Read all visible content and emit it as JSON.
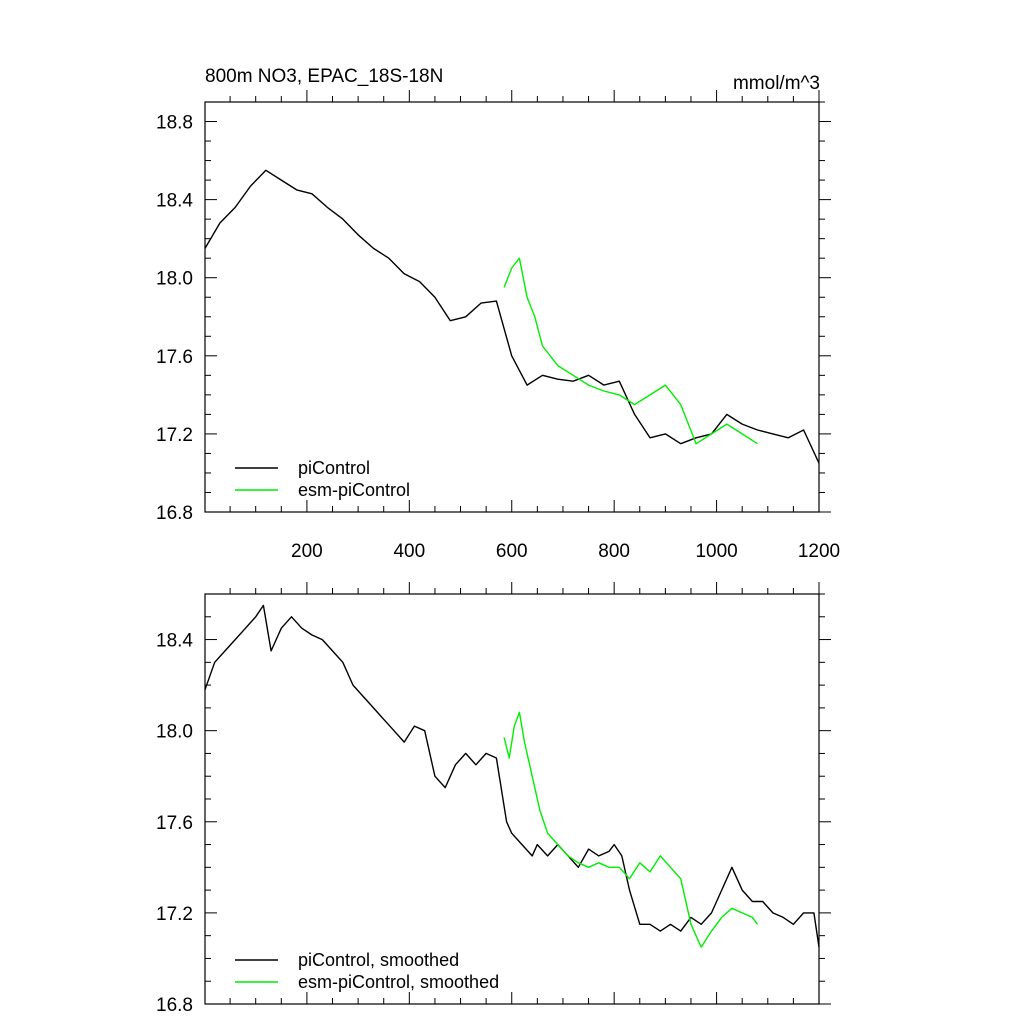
{
  "figure": {
    "title_left": "800m NO3, EPAC_18S-18N",
    "title_right": "mmol/m^3"
  },
  "colors": {
    "picontrol": "#000000",
    "esm_picontrol": "#00ee00"
  },
  "chart_data": [
    {
      "type": "line",
      "title": "800m NO3, EPAC_18S-18N",
      "units": "mmol/m^3",
      "xlim": [
        1,
        1200
      ],
      "ylim": [
        16.8,
        18.9
      ],
      "x_ticks": [
        200,
        400,
        600,
        800,
        1000,
        1200
      ],
      "x_tick_labels": [
        "200",
        "400",
        "600",
        "800",
        "1000",
        "1200"
      ],
      "y_ticks": [
        16.8,
        17.2,
        17.6,
        18.0,
        18.4,
        18.8
      ],
      "y_tick_labels": [
        "16.8",
        "17.2",
        "17.6",
        "18.0",
        "18.4",
        "18.8"
      ],
      "grid": false,
      "legend_position": "bottom-left",
      "series": [
        {
          "name": "piControl",
          "color": "#000000",
          "x": [
            1,
            30,
            60,
            90,
            120,
            150,
            180,
            210,
            240,
            270,
            300,
            330,
            360,
            390,
            420,
            450,
            480,
            510,
            540,
            570,
            600,
            630,
            660,
            690,
            720,
            750,
            780,
            810,
            840,
            870,
            900,
            930,
            960,
            990,
            1020,
            1050,
            1080,
            1110,
            1140,
            1170,
            1200
          ],
          "values": [
            18.15,
            18.28,
            18.36,
            18.47,
            18.55,
            18.5,
            18.45,
            18.43,
            18.36,
            18.3,
            18.22,
            18.15,
            18.1,
            18.02,
            17.98,
            17.9,
            17.78,
            17.8,
            17.87,
            17.88,
            17.6,
            17.45,
            17.5,
            17.48,
            17.47,
            17.5,
            17.45,
            17.47,
            17.3,
            17.18,
            17.2,
            17.15,
            17.18,
            17.2,
            17.3,
            17.25,
            17.22,
            17.2,
            17.18,
            17.22,
            17.05
          ]
        },
        {
          "name": "esm-piControl",
          "color": "#00ee00",
          "x": [
            585,
            600,
            615,
            630,
            645,
            660,
            690,
            720,
            750,
            780,
            810,
            840,
            870,
            900,
            930,
            960,
            990,
            1020,
            1050,
            1080
          ],
          "values": [
            17.95,
            18.05,
            18.1,
            17.9,
            17.8,
            17.65,
            17.55,
            17.5,
            17.45,
            17.42,
            17.4,
            17.35,
            17.4,
            17.45,
            17.35,
            17.15,
            17.2,
            17.25,
            17.2,
            17.15
          ]
        }
      ]
    },
    {
      "type": "line",
      "xlim": [
        1,
        1200
      ],
      "ylim": [
        16.8,
        18.6
      ],
      "x_ticks": [
        200,
        400,
        600,
        800,
        1000,
        1200
      ],
      "y_ticks": [
        16.8,
        17.2,
        17.6,
        18.0,
        18.4
      ],
      "y_tick_labels": [
        "16.8",
        "17.2",
        "17.6",
        "18.0",
        "18.4"
      ],
      "grid": false,
      "legend_position": "bottom-left",
      "series": [
        {
          "name": "piControl, smoothed",
          "color": "#000000",
          "x": [
            1,
            20,
            40,
            60,
            80,
            100,
            115,
            130,
            150,
            170,
            190,
            210,
            230,
            250,
            270,
            290,
            310,
            330,
            350,
            370,
            390,
            410,
            430,
            450,
            470,
            490,
            510,
            530,
            550,
            570,
            590,
            600,
            620,
            640,
            650,
            670,
            690,
            710,
            730,
            750,
            770,
            790,
            800,
            815,
            830,
            850,
            870,
            890,
            910,
            930,
            950,
            970,
            990,
            1010,
            1030,
            1050,
            1070,
            1090,
            1110,
            1130,
            1150,
            1170,
            1190,
            1200
          ],
          "values": [
            18.18,
            18.3,
            18.35,
            18.4,
            18.45,
            18.5,
            18.55,
            18.35,
            18.45,
            18.5,
            18.45,
            18.42,
            18.4,
            18.35,
            18.3,
            18.2,
            18.15,
            18.1,
            18.05,
            18.0,
            17.95,
            18.02,
            18.0,
            17.8,
            17.75,
            17.85,
            17.9,
            17.85,
            17.9,
            17.88,
            17.6,
            17.55,
            17.5,
            17.45,
            17.5,
            17.45,
            17.5,
            17.45,
            17.4,
            17.48,
            17.45,
            17.47,
            17.5,
            17.45,
            17.3,
            17.15,
            17.15,
            17.12,
            17.15,
            17.12,
            17.18,
            17.15,
            17.2,
            17.3,
            17.4,
            17.3,
            17.25,
            17.25,
            17.2,
            17.18,
            17.15,
            17.2,
            17.2,
            17.05
          ]
        },
        {
          "name": "esm-piControl, smoothed",
          "color": "#00ee00",
          "x": [
            585,
            595,
            605,
            615,
            625,
            640,
            655,
            670,
            690,
            710,
            730,
            750,
            770,
            790,
            810,
            830,
            850,
            870,
            890,
            910,
            930,
            950,
            970,
            990,
            1010,
            1030,
            1050,
            1070,
            1080
          ],
          "values": [
            17.97,
            17.88,
            18.02,
            18.08,
            17.95,
            17.8,
            17.65,
            17.55,
            17.5,
            17.45,
            17.42,
            17.4,
            17.42,
            17.4,
            17.4,
            17.35,
            17.42,
            17.38,
            17.45,
            17.4,
            17.35,
            17.15,
            17.05,
            17.12,
            17.18,
            17.22,
            17.2,
            17.18,
            17.15
          ]
        }
      ]
    }
  ]
}
